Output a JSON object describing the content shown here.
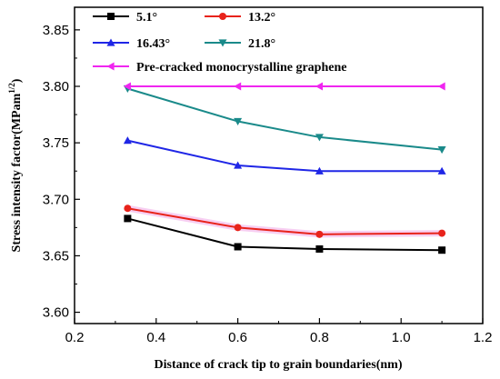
{
  "chart_data": {
    "type": "line",
    "title": "",
    "xlabel": "Distance of crack tip to grain boundaries(nm)",
    "ylabel": "Stress intensity factor(MPam",
    "ylabel_sup": "1/2",
    "ylabel_end": ")",
    "xlim": [
      0.2,
      1.2
    ],
    "ylim": [
      3.59,
      3.87
    ],
    "xticks": [
      0.2,
      0.4,
      0.6,
      0.8,
      1.0,
      1.2
    ],
    "xtick_labels": [
      "0.2",
      "0.4",
      "0.6",
      "0.8",
      "1.0",
      "1.2"
    ],
    "yticks": [
      3.6,
      3.65,
      3.7,
      3.75,
      3.8,
      3.85
    ],
    "ytick_labels": [
      "3.60",
      "3.65",
      "3.70",
      "3.75",
      "3.80",
      "3.85"
    ],
    "grid": false,
    "legend_position": "top",
    "x": [
      0.33,
      0.6,
      0.8,
      1.1
    ],
    "series": [
      {
        "name": "5.1°",
        "color": "#000000",
        "marker": "square",
        "values": [
          3.683,
          3.658,
          3.656,
          3.655
        ]
      },
      {
        "name": "13.2°",
        "color": "#e8231b",
        "marker": "circle",
        "values": [
          3.692,
          3.675,
          3.669,
          3.67
        ]
      },
      {
        "name": "16.43°",
        "color": "#1f26e6",
        "marker": "triangle-up",
        "values": [
          3.752,
          3.73,
          3.725,
          3.725
        ]
      },
      {
        "name": "21.8°",
        "color": "#1a8a8a",
        "marker": "triangle-down",
        "values": [
          3.798,
          3.769,
          3.755,
          3.744
        ]
      },
      {
        "name": "Pre-cracked monocrystalline graphene",
        "color": "#f026f0",
        "marker": "triangle-left",
        "values": [
          3.8,
          3.8,
          3.8,
          3.8
        ]
      }
    ]
  }
}
